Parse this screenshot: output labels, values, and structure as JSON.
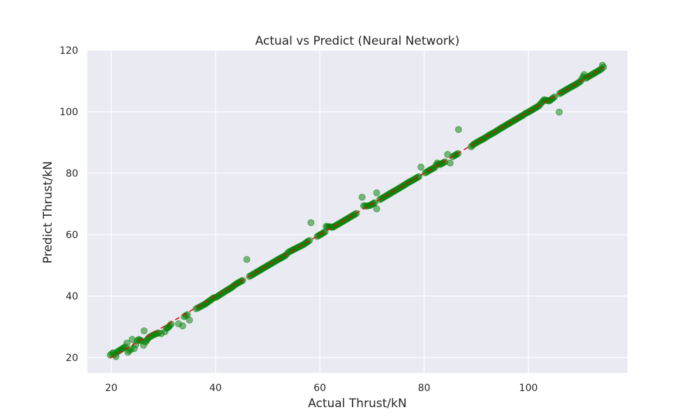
{
  "chart_data": {
    "type": "scatter",
    "title": "Actual vs Predict (Neural Network)",
    "xlabel": "Actual Thrust/kN",
    "ylabel": "Predict Thrust/kN",
    "xlim": [
      15.4,
      119.0
    ],
    "ylim": [
      15.0,
      120.0
    ],
    "xticks": [
      20,
      40,
      60,
      80,
      100
    ],
    "yticks": [
      20,
      40,
      60,
      80,
      100,
      120
    ],
    "grid": true,
    "style": "seaborn-darkgrid",
    "background_color": "#eaeaf2",
    "series": [
      {
        "kind": "scatter",
        "color": "#008000",
        "alpha": 0.5,
        "points": [
          [
            19.8,
            20.8
          ],
          [
            20.4,
            21.6
          ],
          [
            20.9,
            20.3
          ],
          [
            21.1,
            21.8
          ],
          [
            22.7,
            23.5
          ],
          [
            23.0,
            24.7
          ],
          [
            23.2,
            21.7
          ],
          [
            23.8,
            22.8
          ],
          [
            24.0,
            25.9
          ],
          [
            24.4,
            22.9
          ],
          [
            25.0,
            25.5
          ],
          [
            25.3,
            25.9
          ],
          [
            25.8,
            25.4
          ],
          [
            26.2,
            24.0
          ],
          [
            26.3,
            28.7
          ],
          [
            26.6,
            25.1
          ],
          [
            27.0,
            26.1
          ],
          [
            27.3,
            26.6
          ],
          [
            27.9,
            27.2
          ],
          [
            28.5,
            27.7
          ],
          [
            29.1,
            28.0
          ],
          [
            29.6,
            27.8
          ],
          [
            30.3,
            28.4
          ],
          [
            30.6,
            29.5
          ],
          [
            31.0,
            29.9
          ],
          [
            31.5,
            30.9
          ],
          [
            32.9,
            31.0
          ],
          [
            33.7,
            30.3
          ],
          [
            34.0,
            33.3
          ],
          [
            34.6,
            34.0
          ],
          [
            35.0,
            32.2
          ],
          [
            36.3,
            35.9
          ],
          [
            36.9,
            36.4
          ],
          [
            38.0,
            37.4
          ],
          [
            38.4,
            37.9
          ],
          [
            39.6,
            39.4
          ],
          [
            40.2,
            39.7
          ],
          [
            41.0,
            40.6
          ],
          [
            42.1,
            41.8
          ],
          [
            43.0,
            42.7
          ],
          [
            44.0,
            44.0
          ],
          [
            45.2,
            45.1
          ],
          [
            46.0,
            51.9
          ],
          [
            46.5,
            46.4
          ],
          [
            47.8,
            47.7
          ],
          [
            49.0,
            48.9
          ],
          [
            50.5,
            50.4
          ],
          [
            52.0,
            51.9
          ],
          [
            53.4,
            53.2
          ],
          [
            54.0,
            54.3
          ],
          [
            55.5,
            55.6
          ],
          [
            56.8,
            56.7
          ],
          [
            58.0,
            58.1
          ],
          [
            58.3,
            63.9
          ],
          [
            59.5,
            59.4
          ],
          [
            61.0,
            60.9
          ],
          [
            61.2,
            62.7
          ],
          [
            62.5,
            62.4
          ],
          [
            64.0,
            63.9
          ],
          [
            65.5,
            65.4
          ],
          [
            67.0,
            66.9
          ],
          [
            68.1,
            72.2
          ],
          [
            68.4,
            69.4
          ],
          [
            69.0,
            69.3
          ],
          [
            69.6,
            69.5
          ],
          [
            70.5,
            70.4
          ],
          [
            70.9,
            73.6
          ],
          [
            70.9,
            68.4
          ],
          [
            71.5,
            71.4
          ],
          [
            72.0,
            71.9
          ],
          [
            73.0,
            72.9
          ],
          [
            74.2,
            74.1
          ],
          [
            75.0,
            74.9
          ],
          [
            76.0,
            75.9
          ],
          [
            77.0,
            77.0
          ],
          [
            78.0,
            77.9
          ],
          [
            79.0,
            78.9
          ],
          [
            79.4,
            82.0
          ],
          [
            80.2,
            80.1
          ],
          [
            81.0,
            80.9
          ],
          [
            82.0,
            81.8
          ],
          [
            82.5,
            83.3
          ],
          [
            83.0,
            82.8
          ],
          [
            84.0,
            83.7
          ],
          [
            84.5,
            86.1
          ],
          [
            85.0,
            83.3
          ],
          [
            85.5,
            85.4
          ],
          [
            86.0,
            85.9
          ],
          [
            86.5,
            86.4
          ],
          [
            86.6,
            94.2
          ],
          [
            89.0,
            88.6
          ],
          [
            89.5,
            89.4
          ],
          [
            90.5,
            90.4
          ],
          [
            91.5,
            91.3
          ],
          [
            92.5,
            92.4
          ],
          [
            93.5,
            93.3
          ],
          [
            94.5,
            94.4
          ],
          [
            95.5,
            95.4
          ],
          [
            96.5,
            96.4
          ],
          [
            97.5,
            97.4
          ],
          [
            99.0,
            98.9
          ],
          [
            99.5,
            99.5
          ],
          [
            100.0,
            99.9
          ],
          [
            102.0,
            101.9
          ],
          [
            103.0,
            103.9
          ],
          [
            104.0,
            103.5
          ],
          [
            105.0,
            104.8
          ],
          [
            106.0,
            105.9
          ],
          [
            105.9,
            99.9
          ],
          [
            107.0,
            106.9
          ],
          [
            108.0,
            107.9
          ],
          [
            109.0,
            108.8
          ],
          [
            110.0,
            109.9
          ],
          [
            110.7,
            112.1
          ],
          [
            111.0,
            110.9
          ],
          [
            112.0,
            111.9
          ],
          [
            113.0,
            112.9
          ],
          [
            113.5,
            113.4
          ],
          [
            114.0,
            113.9
          ],
          [
            114.2,
            115.1
          ],
          [
            114.4,
            114.5
          ]
        ]
      },
      {
        "kind": "line",
        "style": "dashed",
        "color": "#e01010",
        "points": [
          [
            19.8,
            19.8
          ],
          [
            114.4,
            114.4
          ]
        ]
      }
    ]
  }
}
